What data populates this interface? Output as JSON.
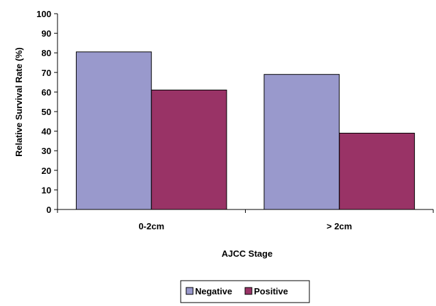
{
  "chart_data": {
    "type": "bar",
    "categories": [
      "0-2cm",
      "> 2cm"
    ],
    "series": [
      {
        "name": "Negative",
        "values": [
          80.5,
          69
        ],
        "color": "#9999cc"
      },
      {
        "name": "Positive",
        "values": [
          61,
          39
        ],
        "color": "#993366"
      }
    ],
    "xlabel": "AJCC Stage",
    "ylabel": "Relative Survival Rate (%)",
    "ylim": [
      0,
      100
    ],
    "yticks": [
      0,
      10,
      20,
      30,
      40,
      50,
      60,
      70,
      80,
      90,
      100
    ],
    "grid": false,
    "legend_position": "bottom"
  }
}
